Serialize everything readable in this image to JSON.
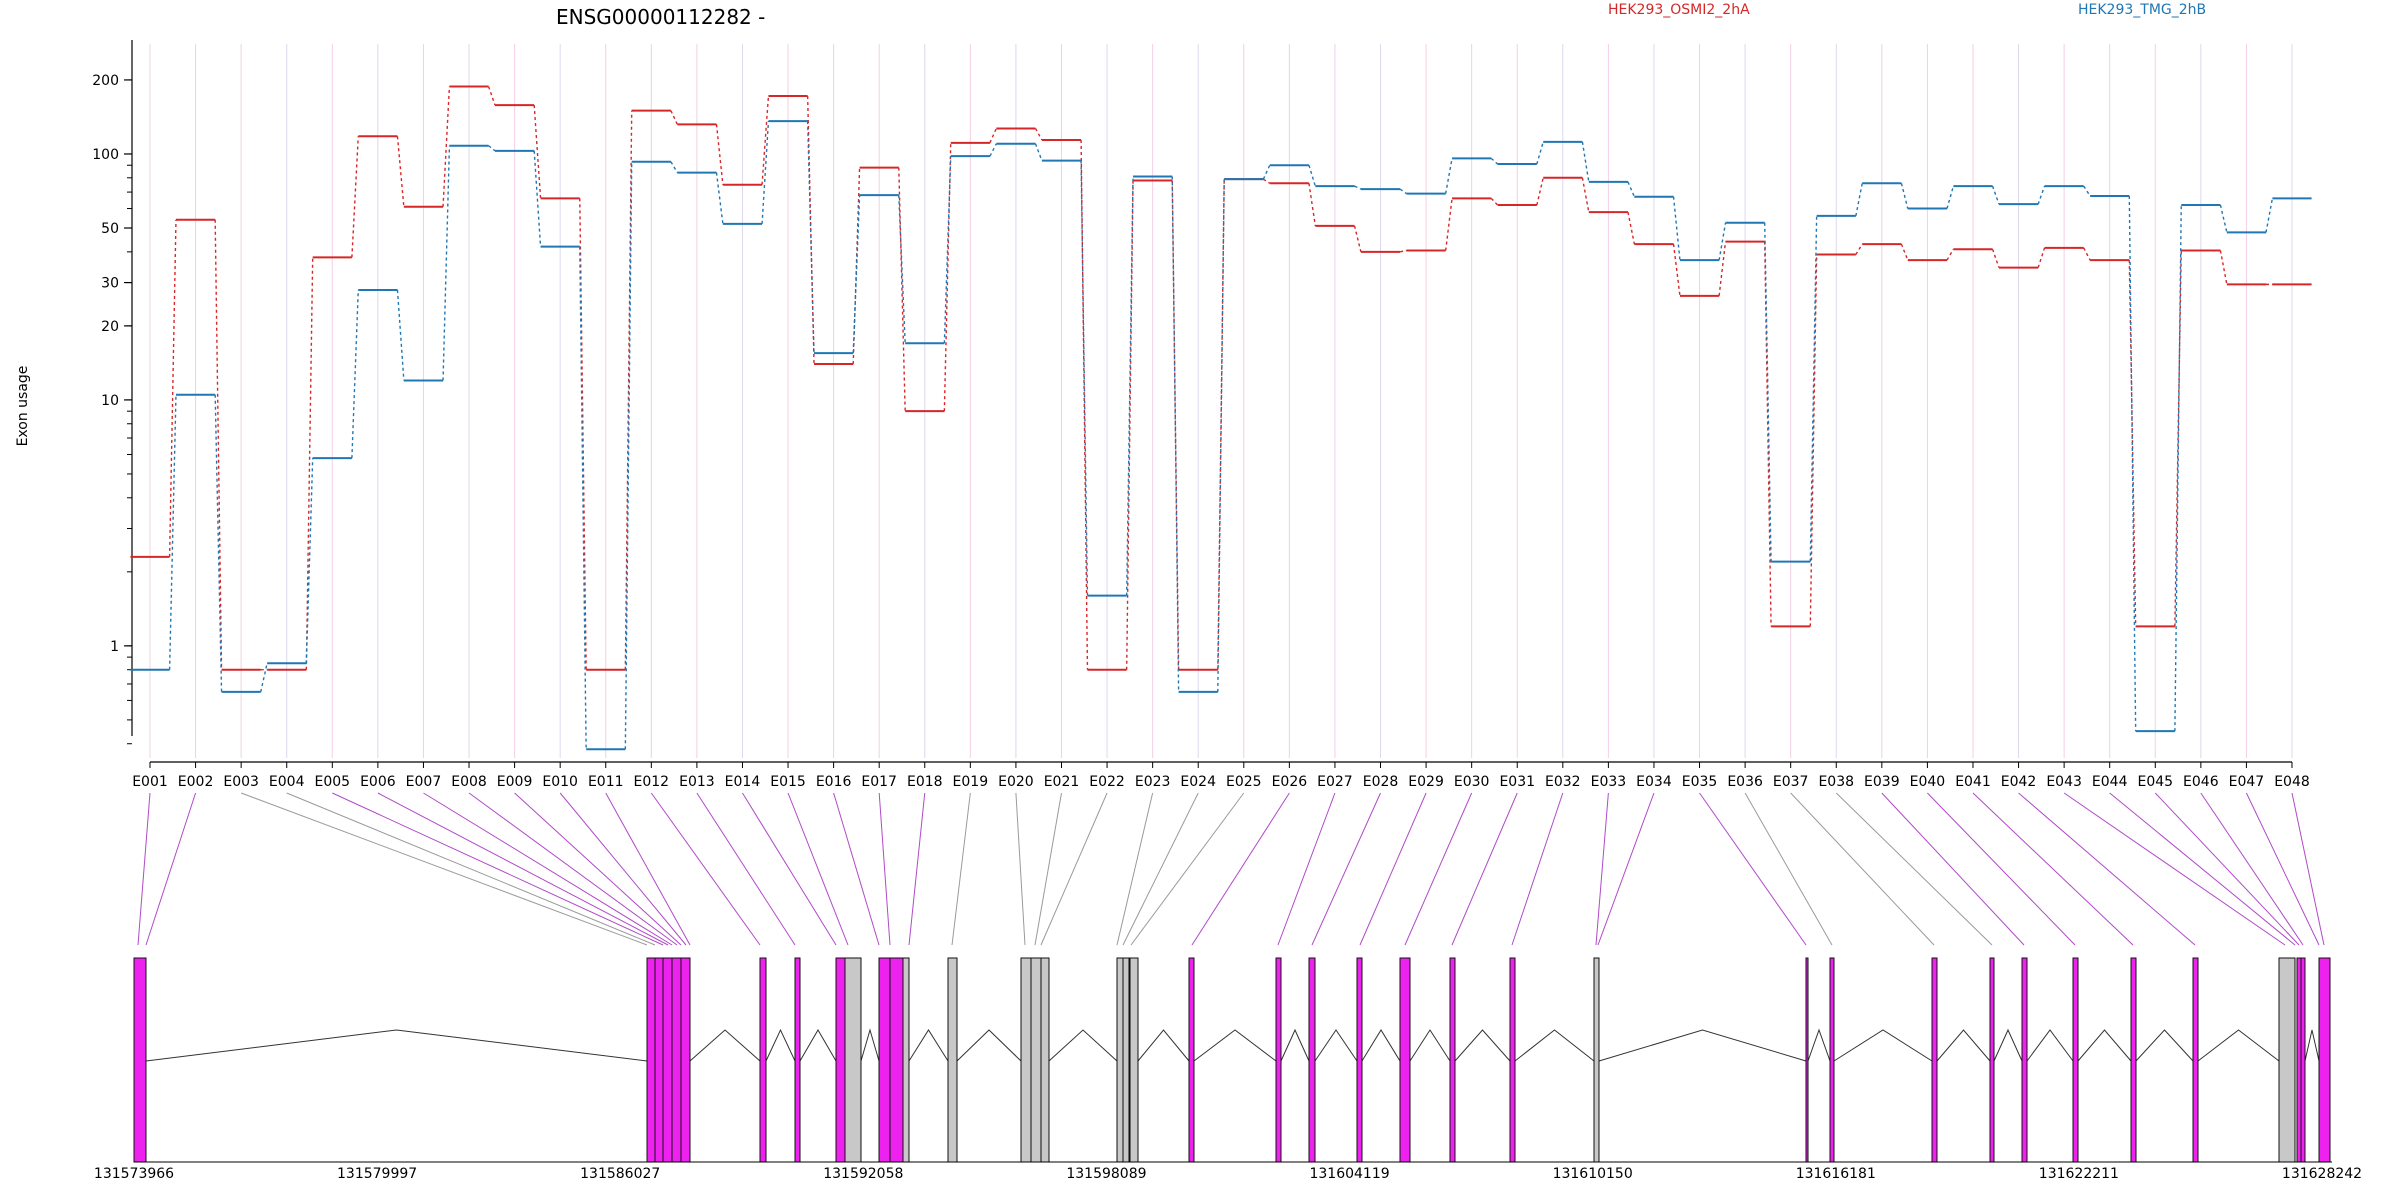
{
  "chart_data": {
    "type": "line",
    "title": "ENSG00000112282 -",
    "ylabel": "Exon usage",
    "yscale": "log",
    "ylim": [
      0.35,
      280
    ],
    "y_ticks": [
      1,
      10,
      20,
      30,
      50,
      100,
      200
    ],
    "y_tick_labels": [
      "1",
      "10",
      "20",
      "30",
      "50",
      "100",
      "200"
    ],
    "categories": [
      "E001",
      "E002",
      "E003",
      "E004",
      "E005",
      "E006",
      "E007",
      "E008",
      "E009",
      "E010",
      "E011",
      "E012",
      "E013",
      "E014",
      "E015",
      "E016",
      "E017",
      "E018",
      "E019",
      "E020",
      "E021",
      "E022",
      "E023",
      "E024",
      "E025",
      "E026",
      "E027",
      "E028",
      "E029",
      "E030",
      "E031",
      "E032",
      "E033",
      "E034",
      "E035",
      "E036",
      "E037",
      "E038",
      "E039",
      "E040",
      "E041",
      "E042",
      "E043",
      "E044",
      "E045",
      "E046",
      "E047",
      "E048"
    ],
    "series": [
      {
        "name": "HEK293_OSMI2_2hA",
        "color": "#d62728",
        "values": [
          2.3,
          54,
          0.8,
          0.8,
          38,
          118,
          61,
          188,
          158,
          66,
          0.8,
          150,
          132,
          75,
          172,
          14,
          88,
          9,
          111,
          127,
          114,
          0.8,
          78,
          0.8,
          79,
          76,
          51,
          40,
          40.5,
          66,
          62,
          80,
          58,
          43,
          26.5,
          44,
          1.2,
          39,
          43,
          37,
          41,
          34.5,
          41.5,
          37,
          1.2,
          40.5,
          29.5,
          29.5
        ]
      },
      {
        "name": "HEK293_TMG_2hB",
        "color": "#1f77b4",
        "values": [
          0.8,
          10.5,
          0.65,
          0.85,
          5.8,
          28,
          12,
          108,
          103,
          42,
          0.38,
          93,
          84,
          52,
          136,
          15.5,
          68,
          17,
          98,
          110,
          94,
          1.6,
          81,
          0.65,
          79,
          90,
          74,
          72,
          69,
          96,
          91,
          112,
          77,
          67,
          37,
          52.5,
          2.2,
          56,
          76,
          60,
          74,
          62.5,
          74,
          67.5,
          0.45,
          62,
          48,
          66
        ]
      }
    ],
    "gene_model": {
      "coord_labels": [
        "131573966",
        "131579997",
        "131586027",
        "131592058",
        "131598089",
        "131604119",
        "131610150",
        "131616181",
        "131622211",
        "131628242"
      ]
    }
  }
}
